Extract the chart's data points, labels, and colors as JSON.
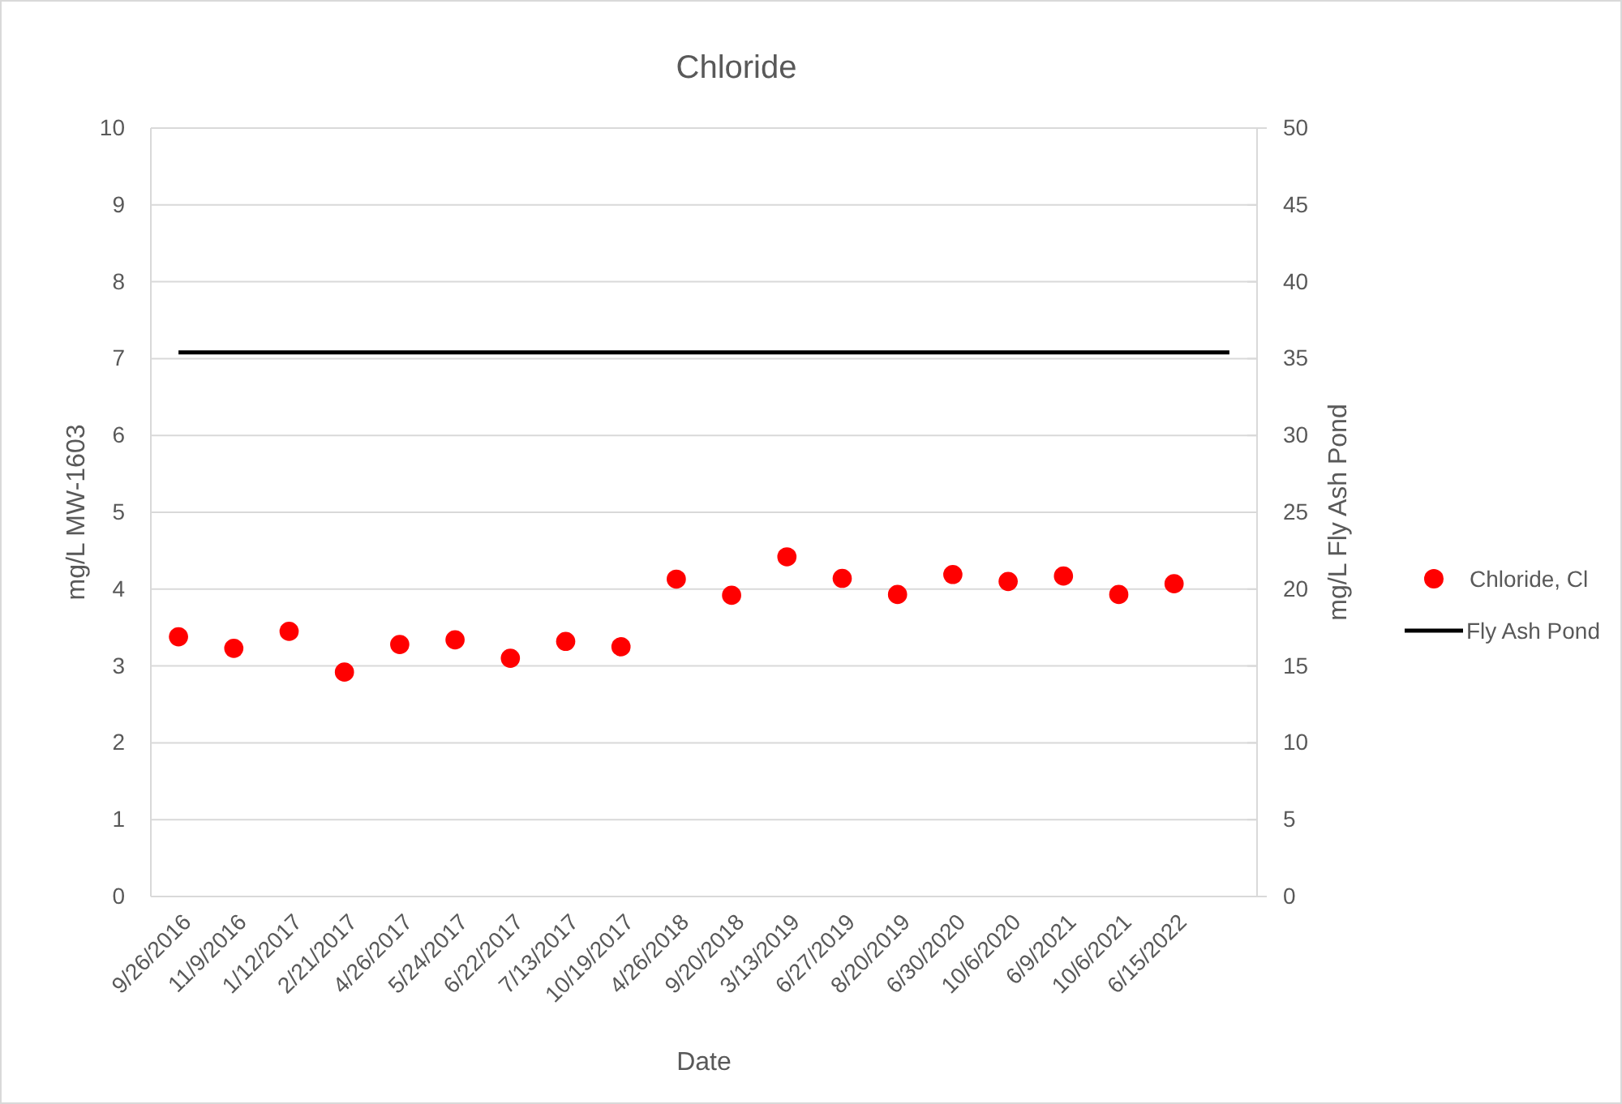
{
  "chart_data": {
    "type": "scatter",
    "title": "Chloride",
    "xlabel": "Date",
    "ylabel": "mg/L MW-1603",
    "y2label": "mg/L Fly Ash Pond",
    "categories": [
      "9/26/2016",
      "11/9/2016",
      "1/12/2017",
      "2/21/2017",
      "4/26/2017",
      "5/24/2017",
      "6/22/2017",
      "7/13/2017",
      "10/19/2017",
      "4/26/2018",
      "9/20/2018",
      "3/13/2019",
      "6/27/2019",
      "8/20/2019",
      "6/30/2020",
      "10/6/2020",
      "6/9/2021",
      "10/6/2021",
      "6/15/2022",
      null
    ],
    "series": [
      {
        "name": "Chloride, Cl",
        "color": "#ff0000",
        "marker": "circle",
        "values": [
          3.38,
          3.23,
          3.45,
          2.92,
          3.28,
          3.34,
          3.1,
          3.32,
          3.25,
          4.13,
          3.92,
          4.42,
          4.14,
          3.93,
          4.19,
          4.1,
          4.17,
          3.93,
          4.07,
          null
        ]
      },
      {
        "name": "Fly Ash Pond",
        "type": "line",
        "color": "#000000",
        "axis": "y2",
        "marker": "none",
        "line_style": "solid",
        "values": [
          35.4,
          35.4,
          35.4,
          35.4,
          35.4,
          35.4,
          35.4,
          35.4,
          35.4,
          35.4,
          35.4,
          35.4,
          35.4,
          35.4,
          35.4,
          35.4,
          35.4,
          35.4,
          35.4,
          35.4
        ]
      }
    ],
    "ylim": [
      0,
      10
    ],
    "yticks": [
      0,
      1,
      2,
      3,
      4,
      5,
      6,
      7,
      8,
      9,
      10
    ],
    "y2lim": [
      0,
      50
    ],
    "y2ticks": [
      0,
      5,
      10,
      15,
      20,
      25,
      30,
      35,
      40,
      45,
      50
    ],
    "grid": "y",
    "legend": "right"
  }
}
